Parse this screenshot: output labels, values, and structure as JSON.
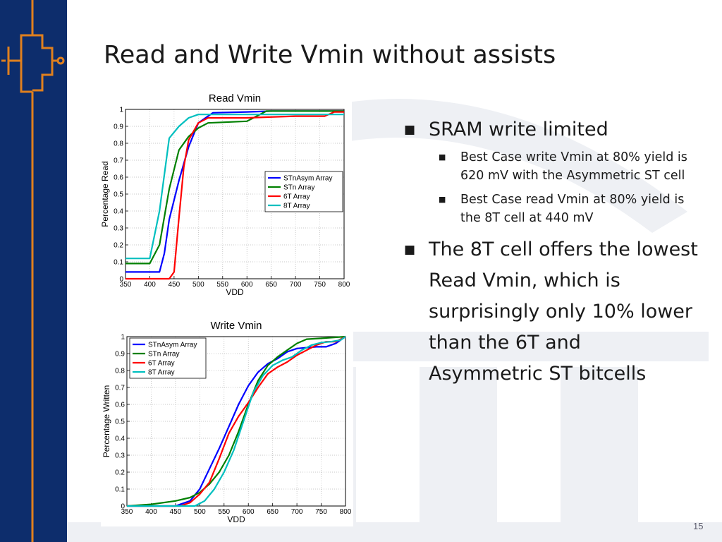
{
  "slide": {
    "title": "Read and Write Vmin without assists",
    "page_number": "15",
    "colors": {
      "sidebar": "#0d2d6c",
      "accent_orange": "#e0801e",
      "watermark": "#eef0f4"
    }
  },
  "bullets": [
    {
      "text": "SRAM write limited",
      "children": [
        "Best Case write Vmin at 80% yield is 620 mV with the Asymmetric ST cell",
        "Best Case read Vmin at 80% yield is the 8T cell at 440 mV"
      ]
    },
    {
      "text": "The 8T cell offers the lowest Read Vmin, which is surprisingly only 10% lower than the 6T and Asymmetric ST bitcells",
      "children": []
    }
  ],
  "chart_data": [
    {
      "type": "line",
      "title": "Read Vmin",
      "xlabel": "VDD",
      "ylabel": "Percentage Read",
      "xlim": [
        350,
        800
      ],
      "ylim": [
        0,
        1
      ],
      "xticks": [
        "350",
        "400",
        "450",
        "500",
        "550",
        "600",
        "650",
        "700",
        "750",
        "800"
      ],
      "yticks": [
        "0",
        "0.1",
        "0.2",
        "0.3",
        "0.4",
        "0.5",
        "0.6",
        "0.7",
        "0.8",
        "0.9",
        "1"
      ],
      "grid": true,
      "legend_position": "right",
      "series": [
        {
          "name": "STnAsym Array",
          "color": "#0000ff",
          "x": [
            350,
            420,
            430,
            440,
            460,
            480,
            500,
            530,
            600,
            650,
            800
          ],
          "y": [
            0.04,
            0.04,
            0.15,
            0.35,
            0.58,
            0.78,
            0.92,
            0.98,
            0.985,
            0.99,
            0.99
          ]
        },
        {
          "name": "STn Array",
          "color": "#008000",
          "x": [
            350,
            400,
            420,
            440,
            460,
            480,
            500,
            520,
            600,
            620,
            640,
            800
          ],
          "y": [
            0.09,
            0.09,
            0.2,
            0.53,
            0.76,
            0.84,
            0.89,
            0.92,
            0.93,
            0.96,
            0.99,
            0.99
          ]
        },
        {
          "name": "6T Array",
          "color": "#ff0000",
          "x": [
            350,
            440,
            450,
            460,
            470,
            480,
            500,
            520,
            600,
            700,
            760,
            780,
            800
          ],
          "y": [
            0,
            0,
            0.04,
            0.36,
            0.66,
            0.82,
            0.92,
            0.95,
            0.95,
            0.96,
            0.96,
            0.985,
            0.985
          ]
        },
        {
          "name": "8T Array",
          "color": "#00bfbf",
          "x": [
            350,
            400,
            420,
            440,
            460,
            480,
            500,
            550,
            800
          ],
          "y": [
            0.12,
            0.12,
            0.4,
            0.83,
            0.9,
            0.95,
            0.97,
            0.97,
            0.97
          ]
        }
      ]
    },
    {
      "type": "line",
      "title": "Write Vmin",
      "xlabel": "VDD",
      "ylabel": "Percentage Written",
      "xlim": [
        350,
        800
      ],
      "ylim": [
        0,
        1
      ],
      "xticks": [
        "350",
        "400",
        "450",
        "500",
        "550",
        "600",
        "650",
        "700",
        "750",
        "800"
      ],
      "yticks": [
        "0",
        "0.1",
        "0.2",
        "0.3",
        "0.4",
        "0.5",
        "0.6",
        "0.7",
        "0.8",
        "0.9",
        "1"
      ],
      "grid": true,
      "legend_position": "top-left",
      "series": [
        {
          "name": "STnAsym Array",
          "color": "#0000ff",
          "x": [
            350,
            450,
            480,
            500,
            520,
            540,
            560,
            580,
            600,
            620,
            640,
            660,
            680,
            700,
            720,
            740,
            760,
            780,
            800
          ],
          "y": [
            0,
            0,
            0.03,
            0.1,
            0.22,
            0.34,
            0.47,
            0.6,
            0.71,
            0.79,
            0.84,
            0.87,
            0.91,
            0.93,
            0.935,
            0.94,
            0.94,
            0.96,
            1
          ]
        },
        {
          "name": "STn Array",
          "color": "#008000",
          "x": [
            350,
            400,
            450,
            480,
            500,
            520,
            540,
            560,
            580,
            600,
            620,
            640,
            660,
            680,
            700,
            720,
            750,
            800
          ],
          "y": [
            0,
            0.01,
            0.03,
            0.05,
            0.08,
            0.13,
            0.2,
            0.3,
            0.44,
            0.6,
            0.74,
            0.83,
            0.88,
            0.92,
            0.96,
            0.985,
            0.99,
            1
          ]
        },
        {
          "name": "6T Array",
          "color": "#ff0000",
          "x": [
            350,
            460,
            480,
            500,
            520,
            540,
            560,
            580,
            600,
            620,
            640,
            660,
            680,
            700,
            720,
            740,
            760,
            780,
            800
          ],
          "y": [
            0,
            0,
            0.02,
            0.07,
            0.14,
            0.28,
            0.43,
            0.53,
            0.61,
            0.7,
            0.78,
            0.82,
            0.85,
            0.89,
            0.92,
            0.95,
            0.97,
            0.97,
            1
          ]
        },
        {
          "name": "8T Array",
          "color": "#00bfbf",
          "x": [
            350,
            490,
            510,
            530,
            550,
            570,
            590,
            610,
            630,
            650,
            670,
            690,
            710,
            730,
            750,
            770,
            790,
            800
          ],
          "y": [
            0,
            0,
            0.03,
            0.1,
            0.2,
            0.33,
            0.5,
            0.67,
            0.77,
            0.83,
            0.86,
            0.88,
            0.92,
            0.95,
            0.965,
            0.97,
            0.98,
            1
          ]
        }
      ]
    }
  ]
}
